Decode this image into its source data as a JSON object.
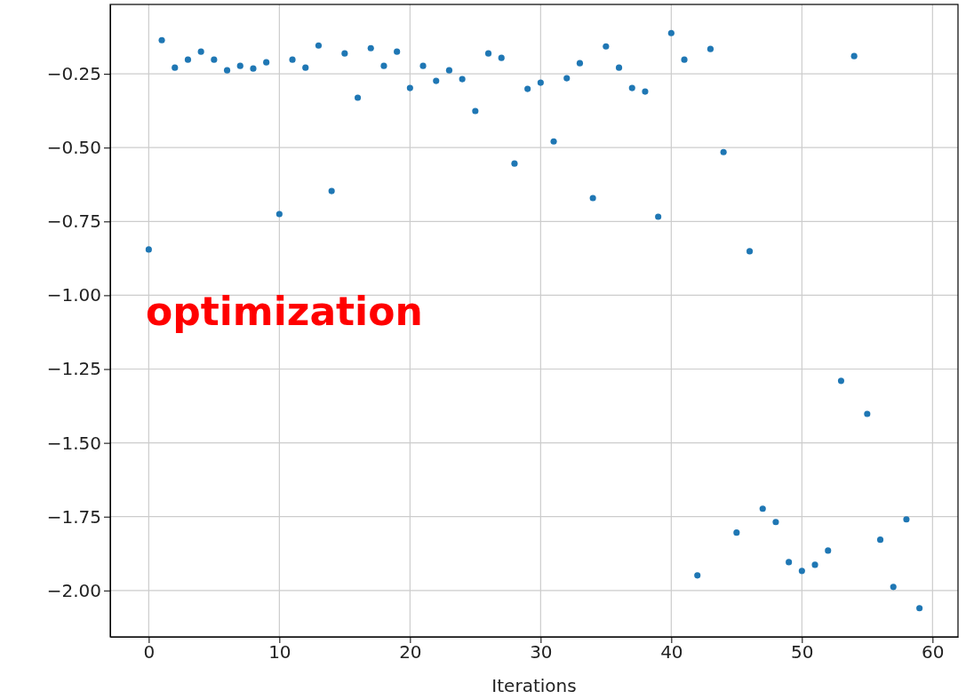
{
  "chart_data": {
    "type": "scatter",
    "xlabel": "Iterations",
    "x": [
      0,
      1,
      2,
      3,
      4,
      5,
      6,
      7,
      8,
      9,
      10,
      11,
      12,
      13,
      14,
      15,
      16,
      17,
      18,
      19,
      20,
      21,
      22,
      23,
      24,
      25,
      26,
      27,
      28,
      29,
      30,
      31,
      32,
      33,
      34,
      35,
      36,
      37,
      38,
      39,
      40,
      41,
      42,
      43,
      44,
      45,
      46,
      47,
      48,
      49,
      50,
      51,
      52,
      53,
      54,
      55,
      56,
      57,
      58,
      59
    ],
    "series": [
      {
        "color": "#1f77b4",
        "values": [
          -0.845,
          -0.136,
          -0.229,
          -0.202,
          -0.175,
          -0.202,
          -0.238,
          -0.223,
          -0.232,
          -0.211,
          -0.725,
          -0.202,
          -0.229,
          -0.154,
          -0.647,
          -0.181,
          -0.331,
          -0.163,
          -0.223,
          -0.175,
          -0.298,
          -0.223,
          -0.274,
          -0.238,
          -0.268,
          -0.376,
          -0.181,
          -0.196,
          -0.554,
          -0.301,
          -0.28,
          -0.479,
          -0.265,
          -0.214,
          -0.671,
          -0.157,
          -0.229,
          -0.298,
          -0.31,
          -0.734,
          -0.112,
          -0.202,
          -1.949,
          -0.166,
          -0.515,
          -1.804,
          -0.851,
          -1.723,
          -1.768,
          -1.904,
          -1.934,
          -1.913,
          -1.865,
          -1.29,
          -0.19,
          -1.402,
          -1.828,
          -1.988,
          -1.759,
          -2.06
        ]
      }
    ],
    "xlim": [
      -2.95,
      61.95
    ],
    "xticks": [
      0,
      10,
      20,
      30,
      40,
      50,
      60
    ],
    "ylim": [
      -2.157,
      -0.015
    ],
    "yticks": [
      {
        "value": -2,
        "label": "−2.00"
      },
      {
        "value": -1.75,
        "label": "−1.75"
      },
      {
        "value": -1.5,
        "label": "−1.50"
      },
      {
        "value": -1.25,
        "label": "−1.25"
      },
      {
        "value": -1,
        "label": "−1.00"
      },
      {
        "value": -0.75,
        "label": "−0.75"
      },
      {
        "value": -0.5,
        "label": "−0.50"
      },
      {
        "value": -0.25,
        "label": "−0.25"
      }
    ],
    "grid": true,
    "marker": "circle",
    "annotations": [
      "optimization"
    ]
  }
}
